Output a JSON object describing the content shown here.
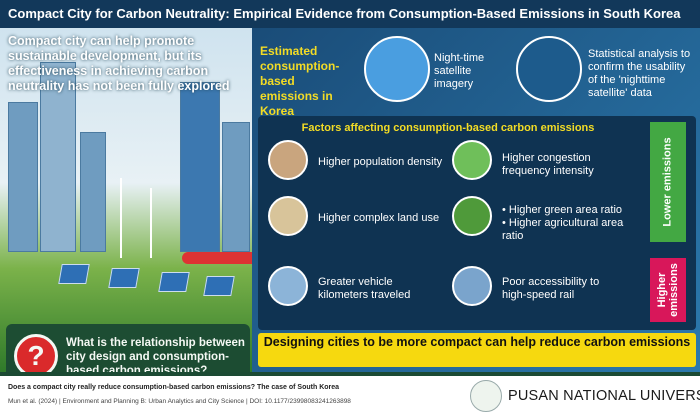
{
  "title": "Compact City for Carbon Neutrality: Empirical Evidence from Consumption-Based Emissions in South Korea",
  "left": {
    "intro": "Compact city can help promote sustainable development, but its effectiveness in achieving carbon neutrality has not been fully explored",
    "question_icon": "?",
    "question": "What is the relationship between city design and consumption-based carbon emissions?"
  },
  "right": {
    "estimated": "Estimated consumption-based emissions in Korea",
    "satellite": "Night-time satellite imagery",
    "analysis": "Statistical analysis to confirm the usability of the 'nighttime satellite' data",
    "factors_title": "Factors affecting consumption-based carbon emissions",
    "factors": [
      "Higher population density",
      "Higher congestion frequency intensity",
      "Higher complex land use",
      "• Higher green area ratio\n• Higher agricultural area ratio",
      "Greater vehicle kilometers traveled",
      "Poor accessibility to high-speed rail"
    ],
    "lower": "Lower emissions",
    "higher": "Higher emissions",
    "banner": "Designing cities to be more compact can help reduce carbon emissions",
    "colors": {
      "lower": "#43a843",
      "higher": "#d8175a",
      "banner": "#f6d90f",
      "accent": "#f3dc25"
    }
  },
  "footer": {
    "citation_title": "Does a compact city really reduce consumption-based carbon emissions? The case of South Korea",
    "citation": "Mun et al. (2024) | Environment and Planning B: Urban Analytics and City Science | DOI: 10.1177/23998083241263898",
    "university": "PUSAN NATIONAL UNIVERSITY"
  }
}
